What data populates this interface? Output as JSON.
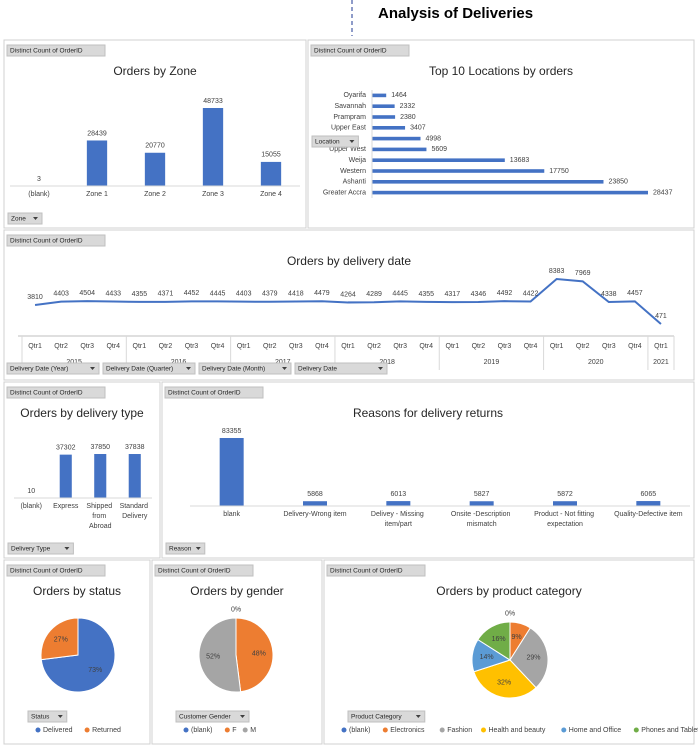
{
  "title": "Analysis of Deliveries",
  "chart_data": [
    {
      "type": "bar",
      "title": "Orders by Zone",
      "value_field": "Distinct Count of OrderID",
      "field_buttons": [
        "Zone"
      ],
      "categories": [
        "(blank)",
        "Zone 1",
        "Zone 2",
        "Zone 3",
        "Zone 4"
      ],
      "values": [
        3,
        28439,
        20770,
        48733,
        15055
      ],
      "color": "#4472c4"
    },
    {
      "type": "bar",
      "orientation": "horizontal",
      "title": "Top 10 Locations by orders",
      "value_field": "Distinct Count of OrderID",
      "field_buttons": [
        "Location"
      ],
      "categories": [
        "Oyarifa",
        "Savannah",
        "Prampram",
        "Upper East",
        null,
        "Upper West",
        "Weija",
        "Western",
        "Ashanti",
        "Greater Accra"
      ],
      "values": [
        1464,
        2332,
        2380,
        3407,
        4998,
        5609,
        13683,
        17750,
        23850,
        28437
      ],
      "color": "#4472c4"
    },
    {
      "type": "line",
      "title": "Orders by delivery date",
      "value_field": "Distinct Count of OrderID",
      "field_buttons": [
        "Delivery Date (Year)",
        "Delivery Date (Quarter)",
        "Delivery Date (Month)",
        "Delivery Date"
      ],
      "categories": [
        "Qtr1",
        "Qtr2",
        "Qtr3",
        "Qtr4",
        "Qtr1",
        "Qtr2",
        "Qtr3",
        "Qtr4",
        "Qtr1",
        "Qtr2",
        "Qtr3",
        "Qtr4",
        "Qtr1",
        "Qtr2",
        "Qtr3",
        "Qtr4",
        "Qtr1",
        "Qtr2",
        "Qtr3",
        "Qtr4",
        "Qtr1",
        "Qtr2",
        "Qtr3",
        "Qtr4",
        "Qtr1"
      ],
      "year_groups": [
        {
          "label": "2015",
          "count": 4
        },
        {
          "label": "2016",
          "count": 4
        },
        {
          "label": "2017",
          "count": 4
        },
        {
          "label": "2018",
          "count": 4
        },
        {
          "label": "2019",
          "count": 4
        },
        {
          "label": "2020",
          "count": 4
        },
        {
          "label": "2021",
          "count": 1
        }
      ],
      "values": [
        3810,
        4403,
        4504,
        4433,
        4355,
        4371,
        4452,
        4445,
        4403,
        4379,
        4418,
        4479,
        4264,
        4289,
        4445,
        4355,
        4317,
        4346,
        4492,
        4422,
        8383,
        7969,
        4338,
        4457,
        471
      ],
      "color": "#4472c4"
    },
    {
      "type": "bar",
      "title": "Orders by delivery type",
      "value_field": "Distinct Count of OrderID",
      "field_buttons": [
        "Delivery Type"
      ],
      "categories": [
        "(blank)",
        "Express",
        "Shipped from Abroad",
        "Standard Delivery"
      ],
      "values": [
        10,
        37302,
        37850,
        37838
      ],
      "color": "#4472c4"
    },
    {
      "type": "bar",
      "title": "Reasons for delivery returns",
      "value_field": "Distinct Count of OrderID",
      "field_buttons": [
        "Reason"
      ],
      "categories": [
        "blank",
        "Delivery-Wrong item",
        "Delivey - Missing item/part",
        "Onsite -Description mismatch",
        "Product - Not fitting expectation",
        "Quality-Defective item"
      ],
      "values": [
        83355,
        5868,
        6013,
        5827,
        5872,
        6065
      ],
      "color": "#4472c4"
    },
    {
      "type": "pie",
      "title": "Orders by status",
      "value_field": "Distinct Count of OrderID",
      "field_buttons": [
        "Status"
      ],
      "categories": [
        "Delivered",
        "Returned"
      ],
      "values": [
        73,
        27
      ],
      "value_labels": [
        "73%",
        "27%"
      ],
      "colors": [
        "#4472c4",
        "#ed7d31"
      ]
    },
    {
      "type": "pie",
      "title": "Orders by gender",
      "value_field": "Distinct Count of OrderID",
      "field_buttons": [
        "Customer Gender"
      ],
      "categories": [
        "(blank)",
        "F",
        "M"
      ],
      "values": [
        0,
        48,
        52
      ],
      "value_labels": [
        "0%",
        "48%",
        "52%"
      ],
      "colors": [
        "#4472c4",
        "#ed7d31",
        "#a5a5a5"
      ]
    },
    {
      "type": "pie",
      "title": "Orders by product category",
      "value_field": "Distinct Count of OrderID",
      "field_buttons": [
        "Product Category"
      ],
      "categories": [
        "(blank)",
        "Electronics",
        "Fashion",
        "Health and beauty",
        "Home and Office",
        "Phones and Tablet"
      ],
      "values": [
        0,
        9,
        29,
        32,
        14,
        16
      ],
      "value_labels": [
        "0%",
        "9%",
        "29%",
        "32%",
        "14%",
        "16%"
      ],
      "colors": [
        "#4472c4",
        "#ed7d31",
        "#a5a5a5",
        "#ffc000",
        "#5b9bd5",
        "#70ad47"
      ]
    }
  ]
}
